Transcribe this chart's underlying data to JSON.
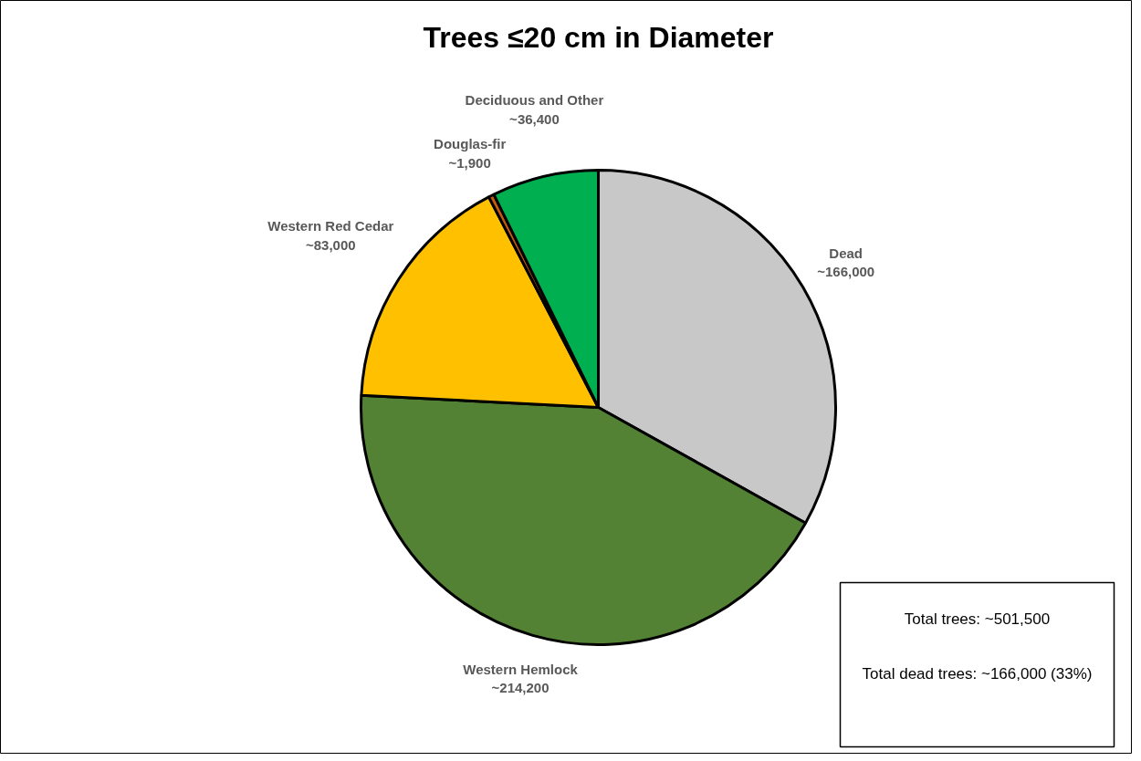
{
  "chart_data": {
    "type": "pie",
    "title": "Trees ≤20 cm in Diameter",
    "categories": [
      "Dead",
      "Western Hemlock",
      "Western Red Cedar",
      "Douglas-fir",
      "Deciduous and Other"
    ],
    "values": [
      166000,
      214200,
      83000,
      1900,
      36400
    ],
    "value_labels": [
      "~166,000",
      "~214,200",
      "~83,000",
      "~1,900",
      "~36,400"
    ],
    "colors": [
      "#c8c8c8",
      "#548235",
      "#ffc000",
      "#c55a11",
      "#00b050"
    ],
    "annotations": [
      "Total trees: ~501,500",
      "Total dead trees: ~166,000 (33%)"
    ],
    "legend": false
  }
}
